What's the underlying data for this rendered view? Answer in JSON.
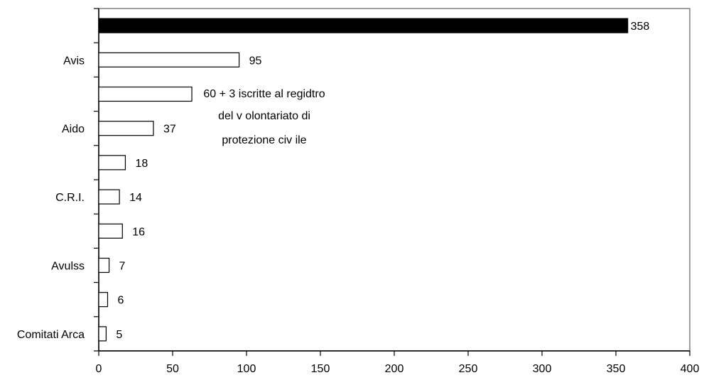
{
  "chart_data": {
    "type": "bar",
    "orientation": "horizontal",
    "title": "",
    "xlabel": "",
    "ylabel": "",
    "xlim": [
      0,
      400
    ],
    "xticks": [
      0,
      50,
      100,
      150,
      200,
      250,
      300,
      350,
      400
    ],
    "xtick_labels": [
      "0",
      "50",
      "100",
      "150",
      "200",
      "250",
      "300",
      "350",
      "400"
    ],
    "grid": false,
    "legend": "none",
    "categories": [
      "",
      "Avis",
      "",
      "Aido",
      "",
      "C.R.I.",
      "",
      "Avulss",
      "",
      "Comitati Arca"
    ],
    "values": [
      358,
      95,
      63,
      37,
      18,
      14,
      16,
      7,
      6,
      5
    ],
    "value_labels": [
      "358",
      "95",
      "",
      "37",
      "18",
      "14",
      "16",
      "7",
      "6",
      "5"
    ],
    "annotation": {
      "lines": [
        "60 + 3 iscritte al regidtro",
        "del v olontariato di",
        "protezione civ ile"
      ]
    },
    "colors": {
      "highlight_bar": "#000000",
      "bar_fill": "#ffffff",
      "bar_stroke": "#000000",
      "frame": "#808080"
    }
  }
}
